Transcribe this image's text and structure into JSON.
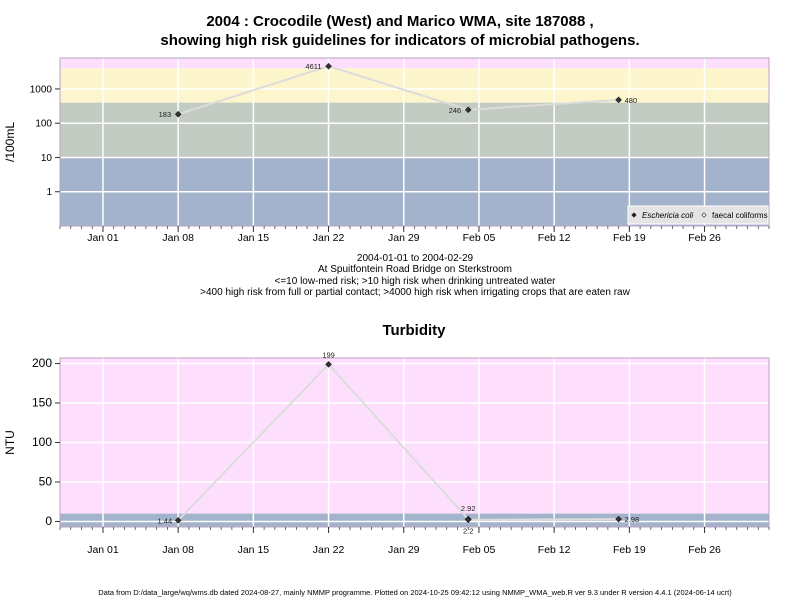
{
  "title_line1": "2004 : Crocodile (West) and Marico WMA, site 187088 ,",
  "title_line2": "showing high risk guidelines for indicators of microbial pathogens.",
  "subtitle_lines": [
    "2004-01-01 to 2004-02-29",
    "At Spuitfontein Road Bridge on Sterkstroom",
    "<=10 low-med risk; >10 high risk when drinking untreated water",
    ">400 high risk from full or partial contact; >4000 high risk when irrigating crops that are eaten raw"
  ],
  "turbidity_title": "Turbidity",
  "footer": "Data from D:/data_large/wq/wms.db dated 2024-08-27, mainly NMMP programme. Plotted on 2024-10-25 09:42:12 using NMMP_WMA_web.R ver 9.3 under R version 4.4.1 (2024-06-14 ucrt)",
  "colors": {
    "band_low": "#a2b3cb",
    "band_med": "#c3ccc2",
    "band_high": "#fdf6cd",
    "band_top": "#fddffd",
    "series_line": "#dcdcdc",
    "point": "#333333"
  },
  "chart_data": [
    {
      "type": "line",
      "ylabel": "/100mL",
      "yscale": "log",
      "ylim": [
        0.1,
        8000
      ],
      "yticks": [
        1,
        10,
        100,
        1000
      ],
      "ytick_labels": [
        "1",
        "10",
        "100",
        "1000"
      ],
      "xlim": [
        "2003-12-28",
        "2004-03-03"
      ],
      "xticks": [
        "2004-01-01",
        "2004-01-08",
        "2004-01-15",
        "2004-01-22",
        "2004-01-29",
        "2004-02-05",
        "2004-02-12",
        "2004-02-19",
        "2004-02-26"
      ],
      "xtick_labels": [
        "Jan 01",
        "Jan 08",
        "Jan 15",
        "Jan 22",
        "Jan 29",
        "Feb 05",
        "Feb 12",
        "Feb 19",
        "Feb 26"
      ],
      "bands": [
        {
          "from": 0.1,
          "to": 10,
          "color": "#a2b3cb"
        },
        {
          "from": 10,
          "to": 400,
          "color": "#c3ccc2"
        },
        {
          "from": 400,
          "to": 4000,
          "color": "#fdf6cd"
        },
        {
          "from": 4000,
          "to": 8000,
          "color": "#fddffd"
        }
      ],
      "series": [
        {
          "name": "Eschericia coli",
          "marker": "filled-diamond",
          "x": [
            "2004-01-08",
            "2004-01-22",
            "2004-02-04",
            "2004-02-18"
          ],
          "values": [
            183,
            4611,
            246,
            480
          ],
          "labels": [
            "183",
            "4611",
            "246",
            "480"
          ]
        }
      ],
      "legend": {
        "position": "bottom-right",
        "items": [
          {
            "label": "Eschericia coli",
            "italic": true,
            "marker": "filled-diamond"
          },
          {
            "label": "faecal coliforms",
            "italic": false,
            "marker": "open-diamond"
          }
        ]
      }
    },
    {
      "type": "line",
      "title": "Turbidity",
      "ylabel": "NTU",
      "yscale": "linear",
      "ylim": [
        -7,
        207
      ],
      "yticks": [
        0,
        50,
        100,
        150,
        200
      ],
      "ytick_labels": [
        "0",
        "50",
        "100",
        "150",
        "200"
      ],
      "xlim": [
        "2003-12-28",
        "2004-03-03"
      ],
      "xticks": [
        "2004-01-01",
        "2004-01-08",
        "2004-01-15",
        "2004-01-22",
        "2004-01-29",
        "2004-02-05",
        "2004-02-12",
        "2004-02-19",
        "2004-02-26"
      ],
      "xtick_labels": [
        "Jan 01",
        "Jan 08",
        "Jan 15",
        "Jan 22",
        "Jan 29",
        "Feb 05",
        "Feb 12",
        "Feb 19",
        "Feb 26"
      ],
      "bands": [
        {
          "from": -7,
          "to": 10,
          "color": "#a2b3cb"
        },
        {
          "from": 10,
          "to": 207,
          "color": "#fddffd"
        }
      ],
      "series": [
        {
          "name": "",
          "marker": "filled-diamond",
          "x": [
            "2004-01-08",
            "2004-01-22",
            "2004-02-04",
            "2004-02-04",
            "2004-02-18"
          ],
          "values": [
            1.44,
            199,
            2.92,
            2.2,
            2.98
          ],
          "labels": [
            "1.44",
            "199",
            "2.92",
            "2.2",
            "2.98"
          ]
        }
      ]
    }
  ]
}
